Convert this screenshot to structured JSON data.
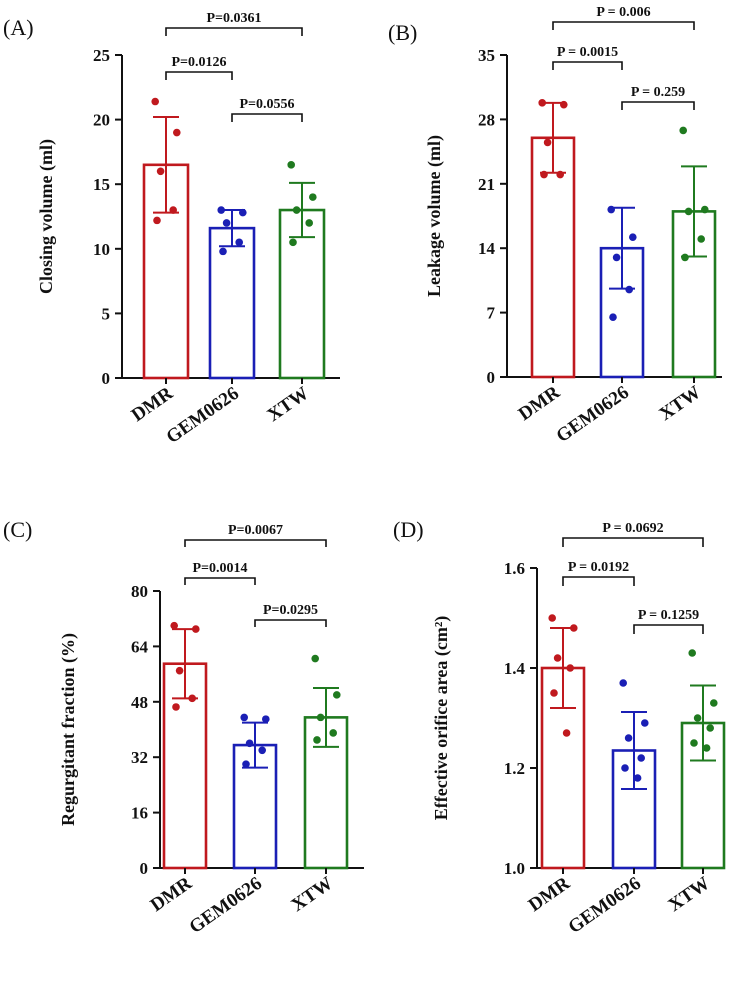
{
  "chart_data": [
    {
      "type": "bar",
      "panel_label": "(A)",
      "ylabel": "Closing volume (ml)",
      "ylim": [
        0,
        25
      ],
      "yticks": [
        "0",
        "5",
        "10",
        "15",
        "20",
        "25"
      ],
      "categories": [
        "DMR",
        "GEM0626",
        "XTW"
      ],
      "colors": [
        "#c0191e",
        "#1a1fb5",
        "#1f7a1f"
      ],
      "means": [
        16.5,
        11.6,
        13.0
      ],
      "sd": [
        3.7,
        1.4,
        2.1
      ],
      "points": [
        [
          21.4,
          19.0,
          16.0,
          13.0,
          12.2
        ],
        [
          13.0,
          12.8,
          12.0,
          10.5,
          9.8
        ],
        [
          16.5,
          14.0,
          13.0,
          12.0,
          10.5
        ]
      ],
      "comparisons": [
        {
          "from": 0,
          "to": 1,
          "label": "P=0.0126"
        },
        {
          "from": 1,
          "to": 2,
          "label": "P=0.0556"
        },
        {
          "from": 0,
          "to": 2,
          "label": "P=0.0361"
        }
      ]
    },
    {
      "type": "bar",
      "panel_label": "(B)",
      "ylabel": "Leakage volume (ml)",
      "ylim": [
        0,
        35
      ],
      "yticks": [
        "0",
        "7",
        "14",
        "21",
        "28",
        "35"
      ],
      "categories": [
        "DMR",
        "GEM0626",
        "XTW"
      ],
      "colors": [
        "#c0191e",
        "#1a1fb5",
        "#1f7a1f"
      ],
      "means": [
        26.0,
        14.0,
        18.0
      ],
      "sd": [
        3.8,
        4.4,
        4.9
      ],
      "points": [
        [
          29.8,
          29.6,
          25.5,
          22.0,
          22.0
        ],
        [
          18.2,
          15.2,
          13.0,
          9.5,
          6.5
        ],
        [
          26.8,
          18.2,
          18.0,
          15.0,
          13.0
        ]
      ],
      "comparisons": [
        {
          "from": 0,
          "to": 1,
          "label": "P = 0.0015"
        },
        {
          "from": 1,
          "to": 2,
          "label": "P = 0.259"
        },
        {
          "from": 0,
          "to": 2,
          "label": "P = 0.006"
        }
      ]
    },
    {
      "type": "bar",
      "panel_label": "(C)",
      "ylabel": "Regurgitant fraction (%)",
      "ylim": [
        0,
        80
      ],
      "yticks": [
        "0",
        "16",
        "32",
        "48",
        "64",
        "80"
      ],
      "categories": [
        "DMR",
        "GEM0626",
        "XTW"
      ],
      "colors": [
        "#c0191e",
        "#1a1fb5",
        "#1f7a1f"
      ],
      "means": [
        59.0,
        35.5,
        43.5
      ],
      "sd": [
        10.0,
        6.5,
        8.5
      ],
      "points": [
        [
          70.0,
          69.0,
          57.0,
          49.0,
          46.5
        ],
        [
          43.5,
          43.0,
          36.0,
          34.0,
          30.0
        ],
        [
          60.5,
          50.0,
          43.5,
          39.0,
          37.0
        ]
      ],
      "comparisons": [
        {
          "from": 0,
          "to": 1,
          "label": "P=0.0014"
        },
        {
          "from": 1,
          "to": 2,
          "label": "P=0.0295"
        },
        {
          "from": 0,
          "to": 2,
          "label": "P=0.0067"
        }
      ]
    },
    {
      "type": "bar",
      "panel_label": "(D)",
      "ylabel": "Effective orifice area (cm²)",
      "ylim": [
        1.0,
        1.6
      ],
      "yticks": [
        "1.0",
        "1.2",
        "1.4",
        "1.6"
      ],
      "categories": [
        "DMR",
        "GEM0626",
        "XTW"
      ],
      "colors": [
        "#c0191e",
        "#1a1fb5",
        "#1f7a1f"
      ],
      "means": [
        1.4,
        1.235,
        1.29
      ],
      "sd": [
        0.08,
        0.077,
        0.075
      ],
      "points": [
        [
          1.5,
          1.48,
          1.42,
          1.4,
          1.35,
          1.27
        ],
        [
          1.37,
          1.29,
          1.26,
          1.22,
          1.2,
          1.18
        ],
        [
          1.43,
          1.33,
          1.3,
          1.28,
          1.25,
          1.24
        ]
      ],
      "comparisons": [
        {
          "from": 0,
          "to": 1,
          "label": "P = 0.0192"
        },
        {
          "from": 1,
          "to": 2,
          "label": "P = 0.1259"
        },
        {
          "from": 0,
          "to": 2,
          "label": "P  = 0.0692"
        }
      ]
    }
  ]
}
